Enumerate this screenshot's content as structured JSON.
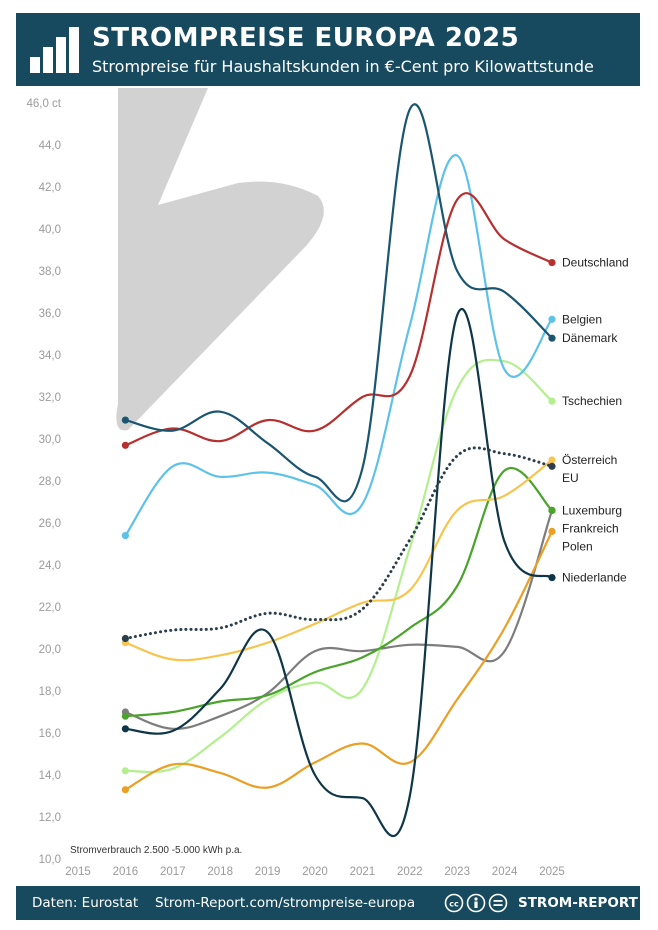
{
  "header": {
    "title": "STROMPREISE EUROPA 2025",
    "subtitle": "Strompreise für Haushaltskunden in €-Cent pro Kilowattstunde",
    "logo_icon": "bar-chart-icon"
  },
  "footer": {
    "source": "Daten: Eurostat",
    "url": "Strom-Report.com/strompreise-europa",
    "license_icons": "cc-by-sa-icon",
    "brand": "STROM-REPORT"
  },
  "chart_data": {
    "type": "line",
    "title": "STROMPREISE EUROPA 2025",
    "subtitle": "Strompreise für Haushaltskunden in €-Cent pro Kilowattstunde",
    "xlabel": "",
    "ylabel": "",
    "x": [
      2016,
      2017,
      2018,
      2019,
      2020,
      2021,
      2022,
      2023,
      2024,
      2025
    ],
    "x_ticks": [
      "2015",
      "2016",
      "2017",
      "2018",
      "2019",
      "2020",
      "2021",
      "2022",
      "2023",
      "2024",
      "2025"
    ],
    "xlim": [
      2015,
      2025
    ],
    "y_ticks": [
      "10,0",
      "12,0",
      "14,0",
      "16,0",
      "18,0",
      "20,0",
      "22,0",
      "24,0",
      "26,0",
      "28,0",
      "30,0",
      "32,0",
      "34,0",
      "36,0",
      "38,0",
      "40,0",
      "42,0",
      "44,0",
      "46,0 ct"
    ],
    "ylim": [
      10,
      46
    ],
    "unit": "ct",
    "grid": false,
    "note": "Stromverbrauch 2.500 -5.000 kWh p.a.",
    "decoration": "lightning-bolt-icon",
    "series": [
      {
        "name": "Deutschland",
        "color": "#b5302f",
        "values": [
          29.7,
          30.5,
          29.9,
          30.9,
          30.4,
          32.0,
          33.0,
          41.4,
          39.5,
          38.4
        ]
      },
      {
        "name": "Belgien",
        "color": "#5ec2e8",
        "values": [
          25.4,
          28.7,
          28.2,
          28.4,
          27.8,
          26.9,
          35.4,
          43.5,
          33.3,
          35.7
        ]
      },
      {
        "name": "Dänemark",
        "color": "#1a5670",
        "values": [
          30.9,
          30.4,
          31.3,
          29.8,
          28.2,
          28.6,
          45.7,
          38.0,
          37.0,
          34.8
        ]
      },
      {
        "name": "Tschechien",
        "color": "#b3ef8f",
        "values": [
          14.2,
          14.3,
          15.8,
          17.6,
          18.4,
          18.1,
          24.8,
          32.4,
          33.7,
          31.8
        ]
      },
      {
        "name": "Österreich",
        "color": "#f6c54f",
        "values": [
          20.3,
          19.5,
          19.7,
          20.3,
          21.2,
          22.2,
          22.8,
          26.6,
          27.3,
          29.0
        ]
      },
      {
        "name": "EU",
        "color": "#2c3e4c",
        "dotted": true,
        "values": [
          20.5,
          20.9,
          21.0,
          21.7,
          21.4,
          21.9,
          25.2,
          29.2,
          29.3,
          28.7
        ]
      },
      {
        "name": "Luxemburg",
        "color": "#4aa32b",
        "values": [
          16.8,
          17.0,
          17.5,
          17.8,
          18.9,
          19.6,
          21.0,
          23.0,
          28.5,
          26.6
        ]
      },
      {
        "name": "Frankreich",
        "color": "#7d7d7d",
        "values": [
          17.0,
          16.2,
          16.8,
          17.9,
          19.9,
          19.9,
          20.2,
          20.1,
          19.9,
          26.6
        ]
      },
      {
        "name": "Polen",
        "color": "#ea9f25",
        "values": [
          13.3,
          14.5,
          14.1,
          13.4,
          14.6,
          15.5,
          14.6,
          17.6,
          21.0,
          25.6
        ]
      },
      {
        "name": "Niederlande",
        "color": "#0f3648",
        "values": [
          16.2,
          16.1,
          18.1,
          20.8,
          14.0,
          12.9,
          13.0,
          35.9,
          25.1,
          23.4
        ]
      }
    ]
  }
}
